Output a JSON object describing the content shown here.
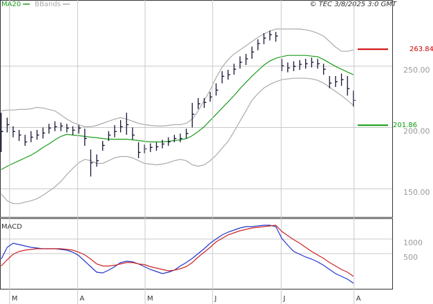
{
  "chart_data": [
    {
      "type": "ohlc",
      "xlim": [
        -0.2,
        65.5
      ],
      "ylim": [
        127,
        304
      ],
      "yticks": [
        {
          "value": 150,
          "label": "150.00"
        },
        {
          "value": 200,
          "label": "200.00"
        },
        {
          "value": 250,
          "label": "250.00"
        }
      ],
      "grid": true,
      "bar_color": "#111133",
      "copyright": "© TEC 3/8/2025 3:0 GMT",
      "close": [
        196.7,
        202.3,
        196.7,
        193.8,
        188.2,
        192.1,
        193.8,
        195.5,
        199.5,
        200.6,
        201.2,
        199.5,
        197.8,
        199.5,
        191,
        171.2,
        172.9,
        185.4,
        193.8,
        196.7,
        200.6,
        202.3,
        193.8,
        179.7,
        182.5,
        183.7,
        184.2,
        186.5,
        188.2,
        191,
        191,
        195,
        210.8,
        219.3,
        220.4,
        224.9,
        230.5,
        241.8,
        243,
        247.5,
        253.2,
        256,
        261.6,
        268.4,
        272.9,
        275.7,
        274.6,
        250.3,
        248.6,
        249.8,
        251.5,
        252,
        253.2,
        252,
        247.5,
        236.2,
        237.3,
        239,
        231.7,
        222.1
      ],
      "high": [
        212,
        208,
        201,
        198,
        194,
        197,
        198,
        200,
        203,
        205,
        204,
        203,
        201,
        202,
        199,
        182,
        178,
        189,
        197,
        202,
        206,
        212,
        200,
        188,
        186,
        187,
        188,
        190,
        192,
        194,
        195,
        199,
        220,
        224,
        224,
        229,
        236,
        246,
        247,
        252,
        258,
        260,
        266,
        272,
        277,
        279,
        278,
        256,
        253,
        254,
        255,
        256,
        257,
        256,
        252,
        242,
        242,
        244,
        242,
        230
      ],
      "low": [
        180,
        196,
        192,
        189,
        185,
        188,
        190,
        191,
        195,
        197,
        197,
        196,
        194,
        195,
        185,
        160,
        168,
        181,
        189,
        192,
        196,
        194,
        190,
        175,
        179,
        180,
        181,
        183,
        185,
        188,
        188,
        191,
        200,
        215,
        216,
        221,
        226,
        236,
        239,
        243,
        248,
        251,
        256,
        263,
        268,
        271,
        270,
        246,
        245,
        246,
        247,
        248,
        249,
        248,
        243,
        232,
        233,
        234,
        226,
        217
      ],
      "series": [
        {
          "name": "MA20",
          "color": "#1a9c1a",
          "values": [
            165.6,
            168.4,
            170.7,
            172.9,
            175.2,
            177.4,
            180.3,
            183.7,
            186.5,
            189.9,
            192.7,
            194.4,
            193.8,
            193.3,
            192.7,
            192.1,
            191.6,
            191,
            190.4,
            190.4,
            190.4,
            190.4,
            189.9,
            189.3,
            188.7,
            188.2,
            188.2,
            188.2,
            188.7,
            189.3,
            189.9,
            191,
            193.3,
            196.7,
            200.6,
            205.7,
            210.8,
            215.9,
            220.9,
            226,
            231.7,
            236.8,
            241.8,
            246.4,
            250.9,
            254.3,
            256.5,
            257.7,
            258.8,
            258.8,
            258.8,
            258.8,
            258.2,
            257.7,
            255.4,
            252.6,
            249.8,
            247.5,
            245.2,
            243
          ]
        },
        {
          "name": "BBands",
          "color": "#aaaaaa",
          "upper": [
            213.6,
            214.2,
            214.2,
            214.7,
            214.7,
            215.3,
            216.4,
            215.9,
            214.7,
            213.6,
            210.2,
            206.8,
            204,
            202.3,
            200.6,
            200.6,
            201.7,
            203.4,
            205.1,
            206.8,
            208,
            206.8,
            205.1,
            203.4,
            202.3,
            201.7,
            201.2,
            201.2,
            201.7,
            202.3,
            202.3,
            203.4,
            206.8,
            213.6,
            222.1,
            230.5,
            240.7,
            249.2,
            255.4,
            259.9,
            263.3,
            266.7,
            270.1,
            273.5,
            276.3,
            278.6,
            280.3,
            280.3,
            280.3,
            280.3,
            280.3,
            279.7,
            278.6,
            276.9,
            274.6,
            270.1,
            265.6,
            262.2,
            262.2,
            263.3
          ],
          "lower": [
            145.8,
            140.2,
            137.9,
            137.9,
            139,
            140.2,
            141.8,
            144.7,
            148.1,
            151.5,
            156,
            161.6,
            166.7,
            171.2,
            174,
            172.9,
            170.7,
            170.7,
            172.9,
            175.2,
            176.3,
            176.3,
            175.2,
            172.9,
            170.7,
            170.1,
            169.5,
            170.1,
            171.2,
            172.9,
            174,
            172.9,
            169.5,
            168.4,
            169.5,
            172.9,
            177.4,
            183.1,
            188.7,
            196.7,
            205.1,
            213.6,
            222.1,
            227.7,
            232.2,
            235.1,
            237.3,
            239,
            239.6,
            240.2,
            240.2,
            240.2,
            239.6,
            238.5,
            236.2,
            232.8,
            229.4,
            226,
            222.1,
            218.1
          ]
        }
      ],
      "levels": [
        {
          "value": 263.84,
          "color": "#cc0000"
        },
        {
          "value": 201.86,
          "color": "#0a9a0a"
        }
      ]
    },
    {
      "type": "line",
      "title": "MACD",
      "xlim": [
        -0.2,
        65.5
      ],
      "ylim": [
        -714,
        1714
      ],
      "yticks": [
        500,
        1000
      ],
      "grid": true,
      "xticks": [
        {
          "value": 1.4,
          "label": "M"
        },
        {
          "value": 12.8,
          "label": "A"
        },
        {
          "value": 24.1,
          "label": "M"
        },
        {
          "value": 35.4,
          "label": "J"
        },
        {
          "value": 46.9,
          "label": "J"
        },
        {
          "value": 59.1,
          "label": "A"
        }
      ],
      "series": [
        {
          "color": "#2233cc",
          "values": [
            309,
            714,
            857,
            809,
            762,
            714,
            690,
            666,
            666,
            666,
            643,
            619,
            547,
            428,
            238,
            48,
            -143,
            -167,
            -71,
            48,
            190,
            238,
            214,
            143,
            48,
            -48,
            -119,
            -190,
            -143,
            -71,
            71,
            190,
            333,
            500,
            666,
            857,
            1000,
            1142,
            1238,
            1309,
            1380,
            1428,
            1428,
            1452,
            1476,
            1476,
            1428,
            1023,
            785,
            571,
            476,
            381,
            309,
            214,
            95,
            -48,
            -190,
            -286,
            -381,
            -524
          ]
        },
        {
          "color": "#cc2222",
          "values": [
            71,
            286,
            476,
            571,
            619,
            643,
            666,
            666,
            666,
            666,
            666,
            643,
            619,
            547,
            452,
            309,
            143,
            71,
            71,
            95,
            143,
            190,
            190,
            143,
            119,
            48,
            0,
            -48,
            -95,
            -71,
            -24,
            48,
            190,
            381,
            547,
            714,
            904,
            1023,
            1142,
            1214,
            1285,
            1333,
            1380,
            1404,
            1428,
            1452,
            1476,
            1261,
            1119,
            976,
            857,
            714,
            571,
            452,
            333,
            190,
            71,
            -48,
            -143,
            -286
          ]
        }
      ]
    }
  ]
}
